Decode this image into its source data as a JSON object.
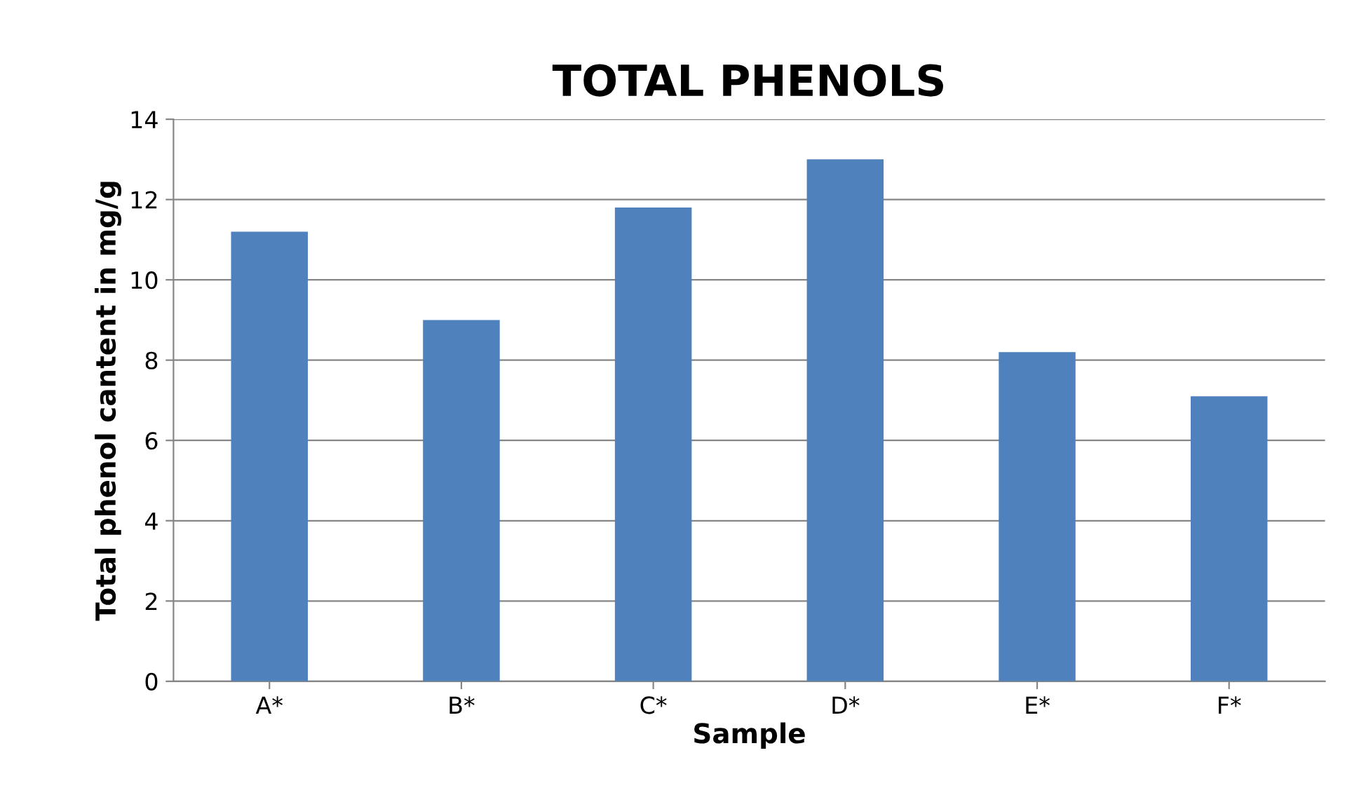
{
  "chart_data": {
    "type": "bar",
    "title": "TOTAL PHENOLS",
    "xlabel": "Sample",
    "ylabel": "Total phenol cantent in mg/g",
    "categories": [
      "A*",
      "B*",
      "C*",
      "D*",
      "E*",
      "F*"
    ],
    "values": [
      11.2,
      9.0,
      11.8,
      13.0,
      8.2,
      7.1
    ],
    "color": "#4f81bd",
    "ylim": [
      0,
      14
    ],
    "yticks": [
      0,
      2,
      4,
      6,
      8,
      10,
      12,
      14
    ],
    "grid": "y",
    "legend": false
  }
}
